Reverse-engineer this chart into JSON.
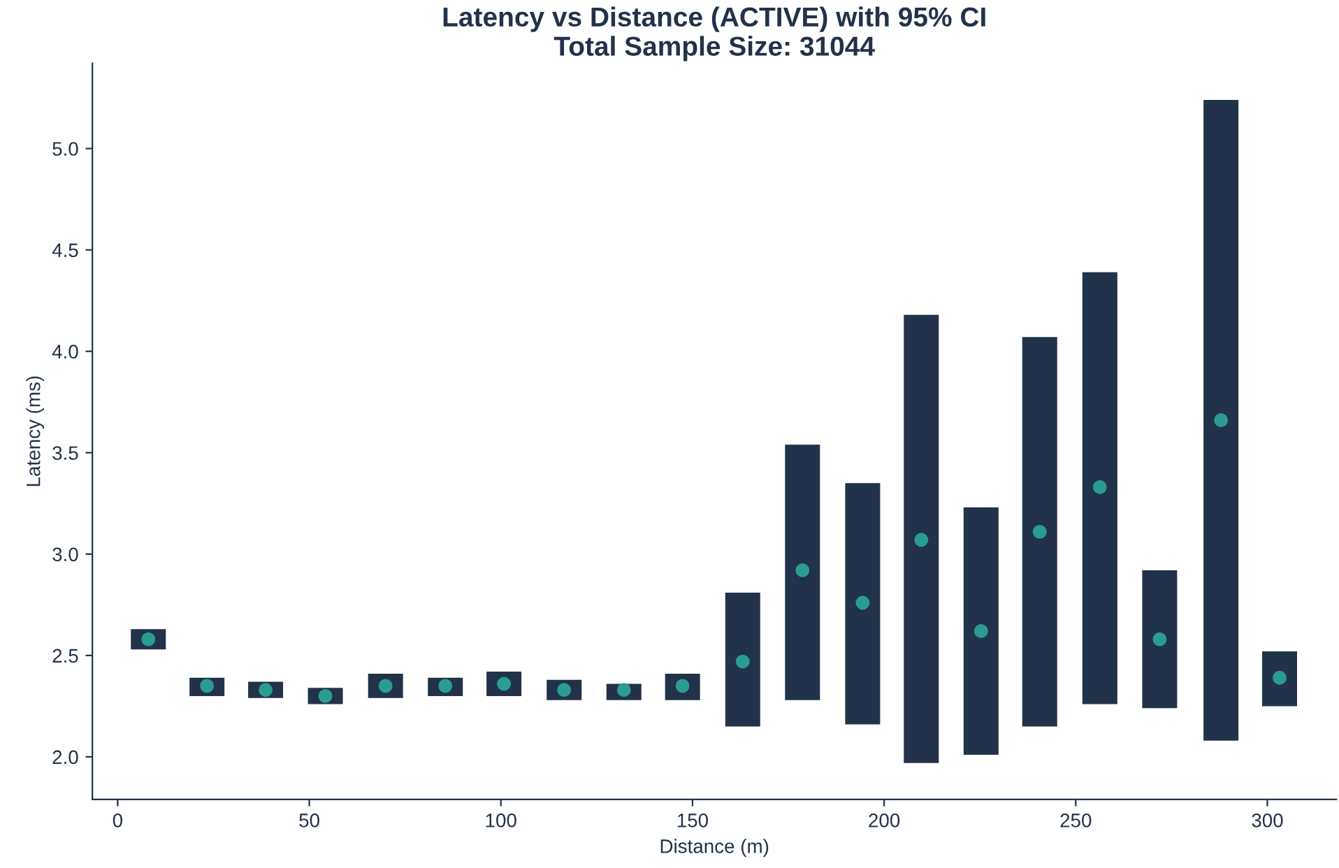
{
  "chart_data": {
    "type": "scatter",
    "title": "Latency vs Distance (ACTIVE) with 95% CI\nTotal Sample Size: 31044",
    "xlabel": "Distance (m)",
    "ylabel": "Latency (ms)",
    "series": [
      {
        "color": "#22324a",
        "colors": [
          "#2a9d8f",
          "#2a9d8f",
          "#2a9d8f",
          "#2a9d8f",
          "#2a9d8f",
          "#2a9d8f",
          "#2a9d8f",
          "#2a9d8f",
          "#2a9d8f",
          "#2a9d8f",
          "#2a9d8f",
          "#2a9d8f",
          "#2a9d8f",
          "#2a9d8f",
          "#2a9d8f",
          "#2a9d8f",
          "#2a9d8f",
          "#2a9d8f",
          "#2a9d8f",
          "#2a9d8f"
        ],
        "x": [
          8.0,
          23.3,
          38.6,
          54.2,
          69.9,
          85.5,
          100.8,
          116.5,
          132.1,
          147.4,
          163.1,
          178.7,
          194.4,
          209.7,
          225.3,
          240.6,
          256.3,
          271.9,
          287.9,
          303.2
        ],
        "values": [
          2.58,
          2.35,
          2.33,
          2.3,
          2.35,
          2.35,
          2.36,
          2.33,
          2.33,
          2.35,
          2.47,
          2.92,
          2.76,
          3.07,
          2.62,
          3.11,
          3.33,
          2.58,
          3.66,
          2.39
        ],
        "errors": [
          [
            2.53,
            2.63
          ],
          [
            2.3,
            2.39
          ],
          [
            2.29,
            2.37
          ],
          [
            2.26,
            2.34
          ],
          [
            2.29,
            2.41
          ],
          [
            2.3,
            2.39
          ],
          [
            2.3,
            2.42
          ],
          [
            2.28,
            2.38
          ],
          [
            2.28,
            2.36
          ],
          [
            2.28,
            2.41
          ],
          [
            2.15,
            2.81
          ],
          [
            2.28,
            3.54
          ],
          [
            2.16,
            3.35
          ],
          [
            1.97,
            4.18
          ],
          [
            2.01,
            3.23
          ],
          [
            2.15,
            4.07
          ],
          [
            2.26,
            4.39
          ],
          [
            2.24,
            2.92
          ],
          [
            2.08,
            5.24
          ],
          [
            2.25,
            2.52
          ]
        ]
      }
    ],
    "xlim": [
      -6.6,
      318
    ],
    "ylim": [
      1.79,
      5.42
    ],
    "xticks": [
      0,
      50,
      100,
      150,
      200,
      250,
      300
    ],
    "yticks": [
      {
        "value": 2.0,
        "label": "2.0"
      },
      {
        "value": 2.5,
        "label": "2.5"
      },
      {
        "value": 3.0,
        "label": "3.0"
      },
      {
        "value": 3.5,
        "label": "3.5"
      },
      {
        "value": 4.0,
        "label": "4.0"
      },
      {
        "value": 4.5,
        "label": "4.5"
      },
      {
        "value": 5.0,
        "label": "5.0"
      }
    ],
    "marker": "circle",
    "grid": false,
    "legend": false
  }
}
